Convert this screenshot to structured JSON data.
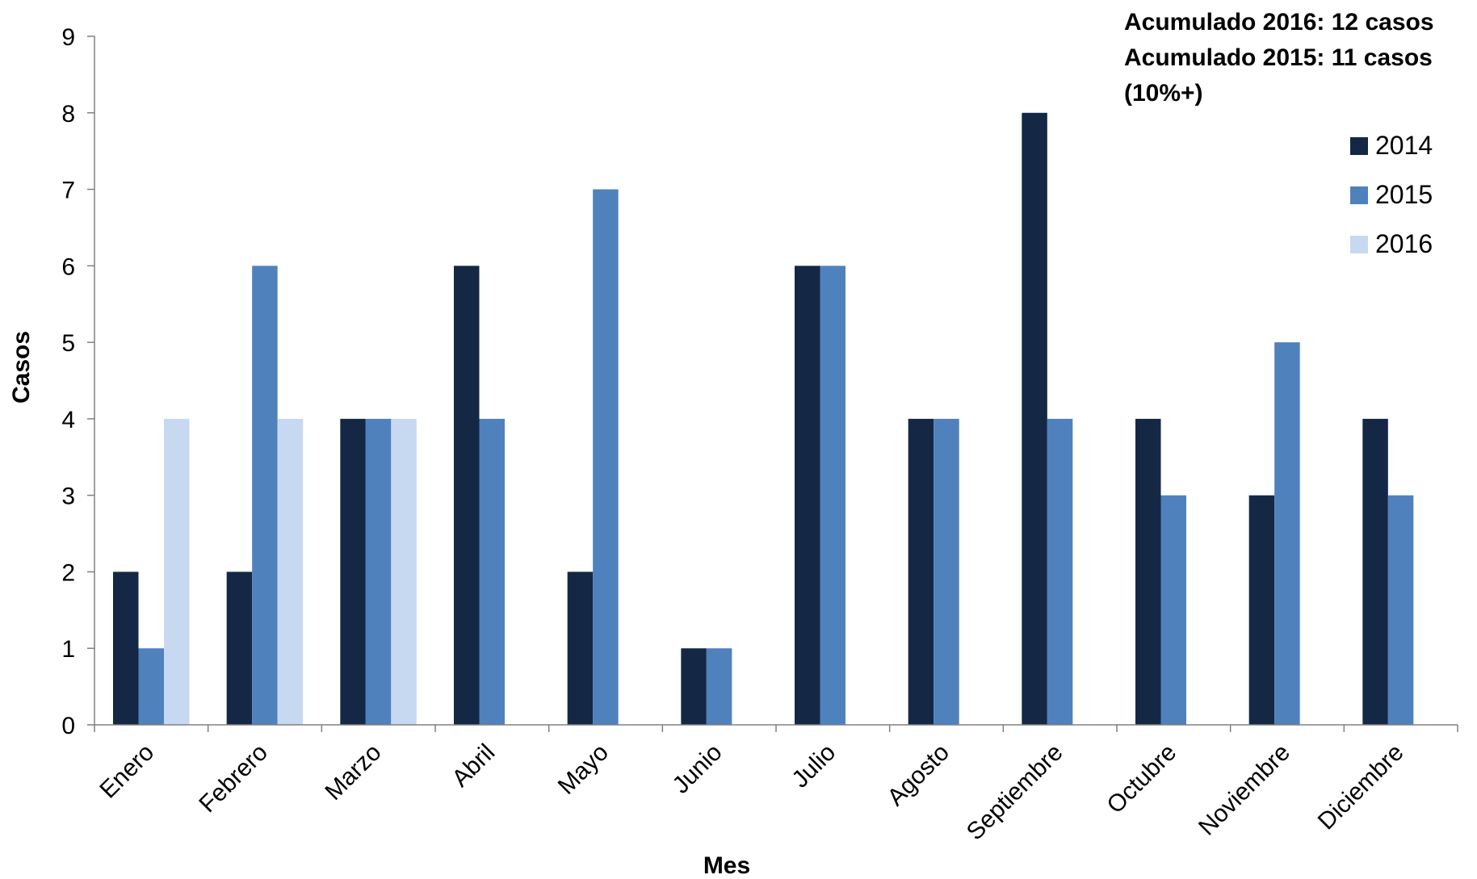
{
  "annotation": {
    "line1": "Acumulado 2016:  12 casos",
    "line2": "Acumulado 2015:  11  casos",
    "line3": "(10%+)"
  },
  "colors": {
    "s2014": "#142845",
    "s2015": "#4f81bd",
    "s2016": "#c6d9f1"
  },
  "chart_data": {
    "type": "bar",
    "xlabel": "Mes",
    "ylabel": "Casos",
    "ylim": [
      0,
      9
    ],
    "yticks": [
      0,
      1,
      2,
      3,
      4,
      5,
      6,
      7,
      8,
      9
    ],
    "grid": false,
    "legend_position": "top-right",
    "categories": [
      "Enero",
      "Febrero",
      "Marzo",
      "Abril",
      "Mayo",
      "Junio",
      "Julio",
      "Agosto",
      "Septiembre",
      "Octubre",
      "Noviembre",
      "Diciembre"
    ],
    "series": [
      {
        "name": "2014",
        "color": "#142845",
        "values": [
          2,
          2,
          4,
          6,
          2,
          1,
          6,
          4,
          8,
          4,
          3,
          4
        ]
      },
      {
        "name": "2015",
        "color": "#4f81bd",
        "values": [
          1,
          6,
          4,
          4,
          7,
          1,
          6,
          4,
          4,
          3,
          5,
          3
        ]
      },
      {
        "name": "2016",
        "color": "#c6d9f1",
        "values": [
          4,
          4,
          4,
          null,
          null,
          null,
          null,
          null,
          null,
          null,
          null,
          null
        ]
      }
    ]
  }
}
